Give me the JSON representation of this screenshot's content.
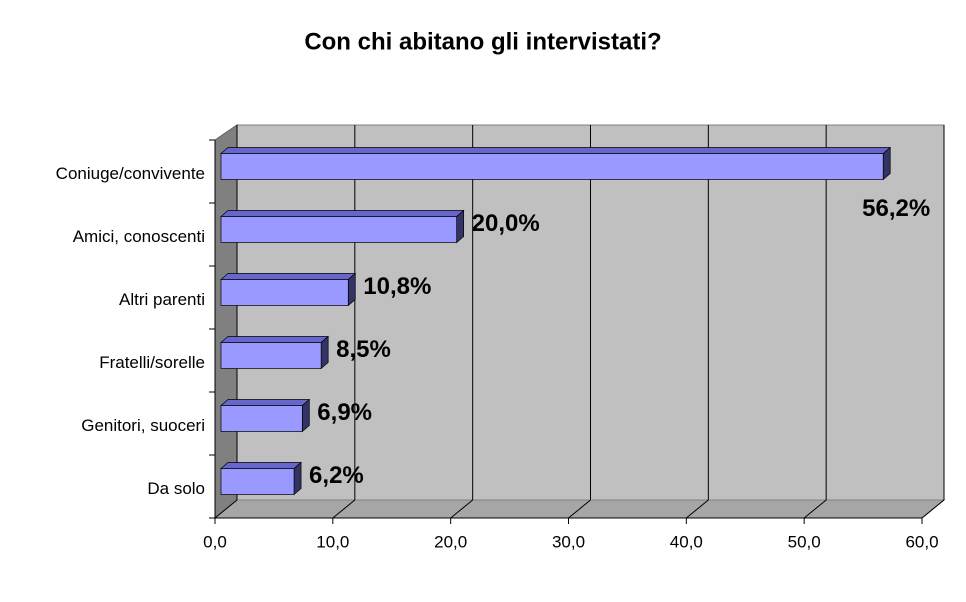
{
  "chart_data": {
    "type": "bar3d",
    "orientation": "horizontal",
    "title": "Con chi abitano gli intervistati?",
    "categories": [
      "Coniuge/convivente",
      "Amici, conoscenti",
      "Altri parenti",
      "Fratelli/sorelle",
      "Genitori, suoceri",
      "Da solo"
    ],
    "values": [
      56.2,
      20.0,
      10.8,
      8.5,
      6.9,
      6.2
    ],
    "value_labels": [
      "56,2%",
      "20,0%",
      "10,8%",
      "8,5%",
      "6,9%",
      "6,2%"
    ],
    "color": "#9999ff",
    "xlim": [
      0,
      60
    ],
    "xticks": [
      {
        "value": 0,
        "label": "0,0"
      },
      {
        "value": 10,
        "label": "10,0"
      },
      {
        "value": 20,
        "label": "20,0"
      },
      {
        "value": 30,
        "label": "30,0"
      },
      {
        "value": 40,
        "label": "40,0"
      },
      {
        "value": 50,
        "label": "50,0"
      },
      {
        "value": 60,
        "label": "60,0"
      }
    ],
    "grid": true
  }
}
